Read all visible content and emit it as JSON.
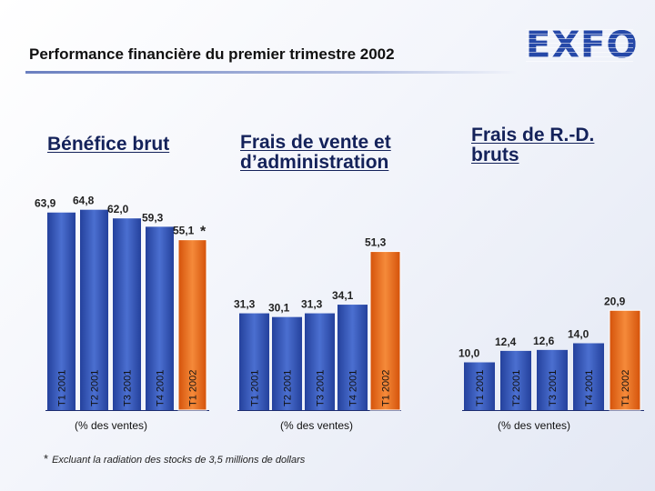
{
  "slide": {
    "title": "Performance financière du premier trimestre 2002",
    "logo_text": "EXFO",
    "footnote_marker": "*",
    "footnote": "Excluant la radiation des stocks de 3,5 millions de dollars"
  },
  "colors": {
    "bar_blue": "#2f4fae",
    "bar_orange": "#e8620c",
    "title_text": "#14225a",
    "logo": "#2548a8"
  },
  "chart_data": [
    {
      "type": "bar",
      "title": "Bénéfice brut",
      "note": "(% des ventes)",
      "categories": [
        "T1 2001",
        "T2 2001",
        "T3 2001",
        "T4 2001",
        "T1 2002"
      ],
      "values": [
        63.9,
        64.8,
        62.0,
        59.3,
        55.1
      ],
      "value_labels": [
        "63,9",
        "64,8",
        "62,0",
        "59,3",
        "55,1"
      ],
      "annotated_index": 4,
      "annotation_marker": "*",
      "highlight_index": 4
    },
    {
      "type": "bar",
      "title": "Frais de vente et d’administration",
      "note": "(% des ventes)",
      "categories": [
        "T1 2001",
        "T2 2001",
        "T3 2001",
        "T4 2001",
        "T1 2002"
      ],
      "values": [
        31.3,
        30.1,
        31.3,
        34.1,
        51.3
      ],
      "value_labels": [
        "31,3",
        "30,1",
        "31,3",
        "34,1",
        "51,3"
      ],
      "highlight_index": 4
    },
    {
      "type": "bar",
      "title": "Frais de R.-D. bruts",
      "note": "(% des ventes)",
      "categories": [
        "T1 2001",
        "T2 2001",
        "T3 2001",
        "T4 2001",
        "T1 2002"
      ],
      "values": [
        10.0,
        12.4,
        12.6,
        14.0,
        20.9
      ],
      "value_labels": [
        "10,0",
        "12,4",
        "12,6",
        "14,0",
        "20,9"
      ],
      "highlight_index": 4
    }
  ]
}
